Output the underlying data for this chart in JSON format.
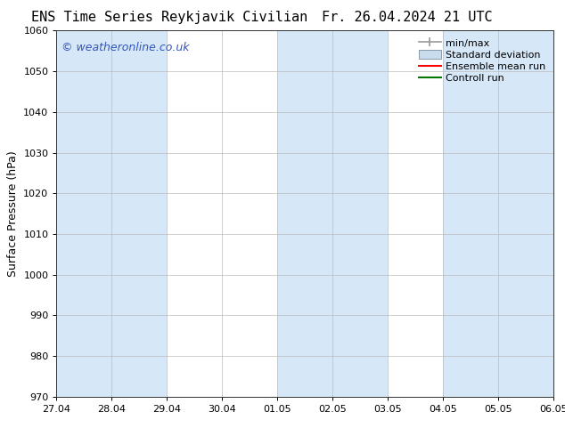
{
  "title_left": "ENS Time Series Reykjavik Civilian",
  "title_right": "Fr. 26.04.2024 21 UTC",
  "ylabel": "Surface Pressure (hPa)",
  "ylim": [
    970,
    1060
  ],
  "yticks": [
    970,
    980,
    990,
    1000,
    1010,
    1020,
    1030,
    1040,
    1050,
    1060
  ],
  "xlabel_ticks": [
    "27.04",
    "28.04",
    "29.04",
    "30.04",
    "01.05",
    "02.05",
    "03.05",
    "04.05",
    "05.05",
    "06.05"
  ],
  "n_xticks": 10,
  "shade_ranges": [
    [
      0,
      2
    ],
    [
      4,
      6
    ],
    [
      7,
      9
    ]
  ],
  "shade_color": "#d6e8f7",
  "bg_color": "#ffffff",
  "plot_bg_color": "#ffffff",
  "watermark": "© weatheronline.co.uk",
  "watermark_color": "#3355bb",
  "legend_entries": [
    {
      "label": "min/max",
      "color": "#999999",
      "style": "errorbar"
    },
    {
      "label": "Standard deviation",
      "color": "#c8dcee",
      "style": "rect"
    },
    {
      "label": "Ensemble mean run",
      "color": "#ff0000",
      "style": "line"
    },
    {
      "label": "Controll run",
      "color": "#007700",
      "style": "line"
    }
  ],
  "title_fontsize": 11,
  "axis_label_fontsize": 9,
  "tick_fontsize": 8,
  "watermark_fontsize": 9,
  "legend_fontsize": 8,
  "figsize": [
    6.34,
    4.9
  ],
  "dpi": 100
}
